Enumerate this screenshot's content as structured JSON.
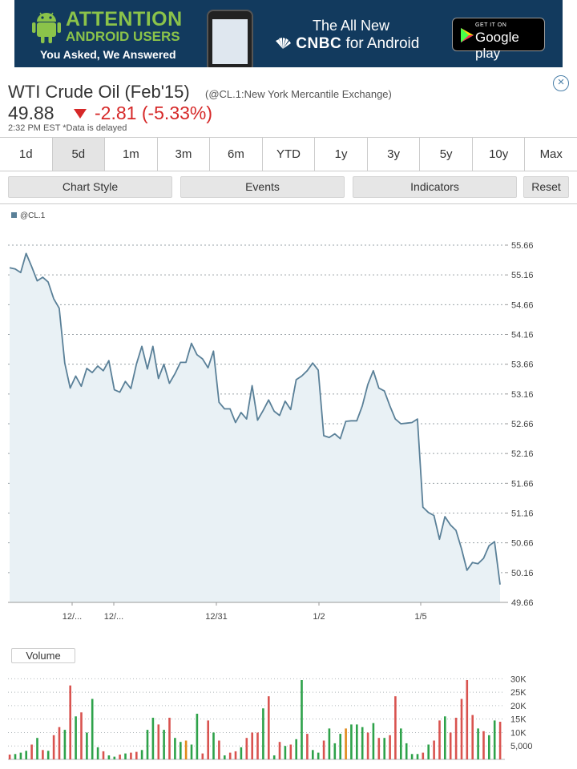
{
  "ad": {
    "headline_1": "ATTENTION",
    "headline_2": "ANDROID USERS",
    "tagline": "You Asked, We Answered",
    "promo_line_1": "The All New",
    "promo_brand": "CNBC",
    "promo_line_2": "for Android",
    "store_badge_top": "GET IT ON",
    "store_badge_bottom": "Google play",
    "colors": {
      "background": "#123a5e",
      "accent": "#8bc34a"
    }
  },
  "quote": {
    "title": "WTI Crude Oil (Feb'15)",
    "exchange": "(@CL.1:New York Mercantile Exchange)",
    "price": "49.88",
    "change": "-2.81 (-5.33%)",
    "timestamp": "2:32 PM EST  *Data is delayed",
    "close_icon": "close-circle-icon",
    "colors": {
      "down": "#d62828"
    }
  },
  "range_tabs": [
    {
      "label": "1d"
    },
    {
      "label": "5d",
      "active": true
    },
    {
      "label": "1m"
    },
    {
      "label": "3m"
    },
    {
      "label": "6m"
    },
    {
      "label": "YTD"
    },
    {
      "label": "1y"
    },
    {
      "label": "3y"
    },
    {
      "label": "5y"
    },
    {
      "label": "10y"
    },
    {
      "label": "Max"
    }
  ],
  "toolbar": {
    "chart_style": "Chart Style",
    "events": "Events",
    "indicators": "Indicators",
    "reset": "Reset"
  },
  "chart_data": [
    {
      "type": "area",
      "legend": "@CL.1",
      "legend_position": "top-left",
      "series": [
        {
          "name": "@CL.1",
          "color": "#5a8098",
          "values": [
            55.28,
            55.26,
            55.2,
            55.52,
            55.3,
            55.06,
            55.12,
            55.04,
            54.76,
            54.6,
            53.68,
            53.26,
            53.46,
            53.29,
            53.59,
            53.52,
            53.63,
            53.55,
            53.72,
            53.23,
            53.19,
            53.37,
            53.25,
            53.66,
            53.96,
            53.58,
            53.96,
            53.42,
            53.66,
            53.34,
            53.5,
            53.69,
            53.69,
            54.01,
            53.82,
            53.75,
            53.6,
            53.88,
            53.02,
            52.91,
            52.91,
            52.68,
            52.85,
            52.74,
            53.3,
            52.72,
            52.88,
            53.06,
            52.87,
            52.8,
            53.04,
            52.9,
            53.4,
            53.46,
            53.55,
            53.68,
            53.56,
            52.46,
            52.43,
            52.49,
            52.41,
            52.7,
            52.71,
            52.71,
            52.96,
            53.32,
            53.55,
            53.26,
            53.21,
            52.96,
            52.74,
            52.66,
            52.67,
            52.68,
            52.74,
            51.26,
            51.17,
            51.12,
            50.72,
            51.1,
            50.96,
            50.87,
            50.56,
            50.2,
            50.33,
            50.31,
            50.4,
            50.61,
            50.68,
            49.96
          ]
        }
      ],
      "y_ticks": [
        "55.66",
        "55.16",
        "54.66",
        "54.16",
        "53.66",
        "53.16",
        "52.66",
        "52.16",
        "51.66",
        "51.16",
        "50.66",
        "50.16",
        "49.66"
      ],
      "ylim": [
        49.66,
        55.66
      ],
      "x_tick_labels": [
        "12/...",
        "12/...",
        "12/31",
        "1/2",
        "1/5"
      ],
      "grid": true
    },
    {
      "type": "bar",
      "title": "Volume",
      "y_ticks": [
        "30K",
        "25K",
        "20K",
        "15K",
        "10K",
        "5,000"
      ],
      "ylim": [
        0,
        31000
      ],
      "values": [
        1800,
        2000,
        2500,
        3200,
        5500,
        8000,
        3500,
        3200,
        9000,
        12000,
        11000,
        27500,
        16000,
        17500,
        10000,
        22500,
        4500,
        3000,
        1500,
        1000,
        1800,
        2200,
        2500,
        2800,
        3500,
        11000,
        15500,
        13000,
        11000,
        15500,
        8000,
        6500,
        7000,
        5500,
        17000,
        2200,
        14500,
        10000,
        7000,
        1500,
        2500,
        3000,
        4500,
        8000,
        10000,
        10000,
        19000,
        23500,
        1500,
        6500,
        5000,
        5500,
        7500,
        29500,
        9500,
        3500,
        2500,
        7000,
        11500,
        6000,
        9500,
        11500,
        13000,
        13000,
        12000,
        10000,
        13500,
        8000,
        8000,
        9000,
        23500,
        11500,
        6000,
        2000,
        2000,
        2500,
        5500,
        7000,
        14500,
        16000,
        10000,
        15500,
        22500,
        29500,
        16500,
        11500,
        10500,
        9000,
        14500,
        14000
      ],
      "colors": [
        "#d9534f",
        "#2ea24a",
        "#2ea24a",
        "#2ea24a",
        "#d9534f",
        "#2ea24a",
        "#d9534f",
        "#2ea24a",
        "#d9534f",
        "#d9534f",
        "#2ea24a",
        "#d9534f",
        "#2ea24a",
        "#d9534f",
        "#2ea24a",
        "#2ea24a",
        "#2ea24a",
        "#d9534f",
        "#2ea24a",
        "#2ea24a",
        "#d9534f",
        "#2ea24a",
        "#d9534f",
        "#d9534f",
        "#2ea24a",
        "#2ea24a",
        "#2ea24a",
        "#d9534f",
        "#2ea24a",
        "#d9534f",
        "#2ea24a",
        "#2ea24a",
        "#e08a1a",
        "#2ea24a",
        "#2ea24a",
        "#d9534f",
        "#d9534f",
        "#2ea24a",
        "#d9534f",
        "#2ea24a",
        "#d9534f",
        "#d9534f",
        "#2ea24a",
        "#d9534f",
        "#d9534f",
        "#d9534f",
        "#2ea24a",
        "#d9534f",
        "#2ea24a",
        "#d9534f",
        "#2ea24a",
        "#d9534f",
        "#2ea24a",
        "#2ea24a",
        "#d9534f",
        "#2ea24a",
        "#2ea24a",
        "#d9534f",
        "#2ea24a",
        "#2ea24a",
        "#2ea24a",
        "#e08a1a",
        "#2ea24a",
        "#2ea24a",
        "#2ea24a",
        "#d9534f",
        "#2ea24a",
        "#d9534f",
        "#2ea24a",
        "#d9534f",
        "#d9534f",
        "#2ea24a",
        "#2ea24a",
        "#2ea24a",
        "#2ea24a",
        "#d9534f",
        "#2ea24a",
        "#d9534f",
        "#d9534f",
        "#2ea24a",
        "#d9534f",
        "#d9534f",
        "#d9534f",
        "#d9534f",
        "#d9534f",
        "#2ea24a",
        "#d9534f",
        "#2ea24a",
        "#2ea24a",
        "#d9534f"
      ]
    }
  ]
}
